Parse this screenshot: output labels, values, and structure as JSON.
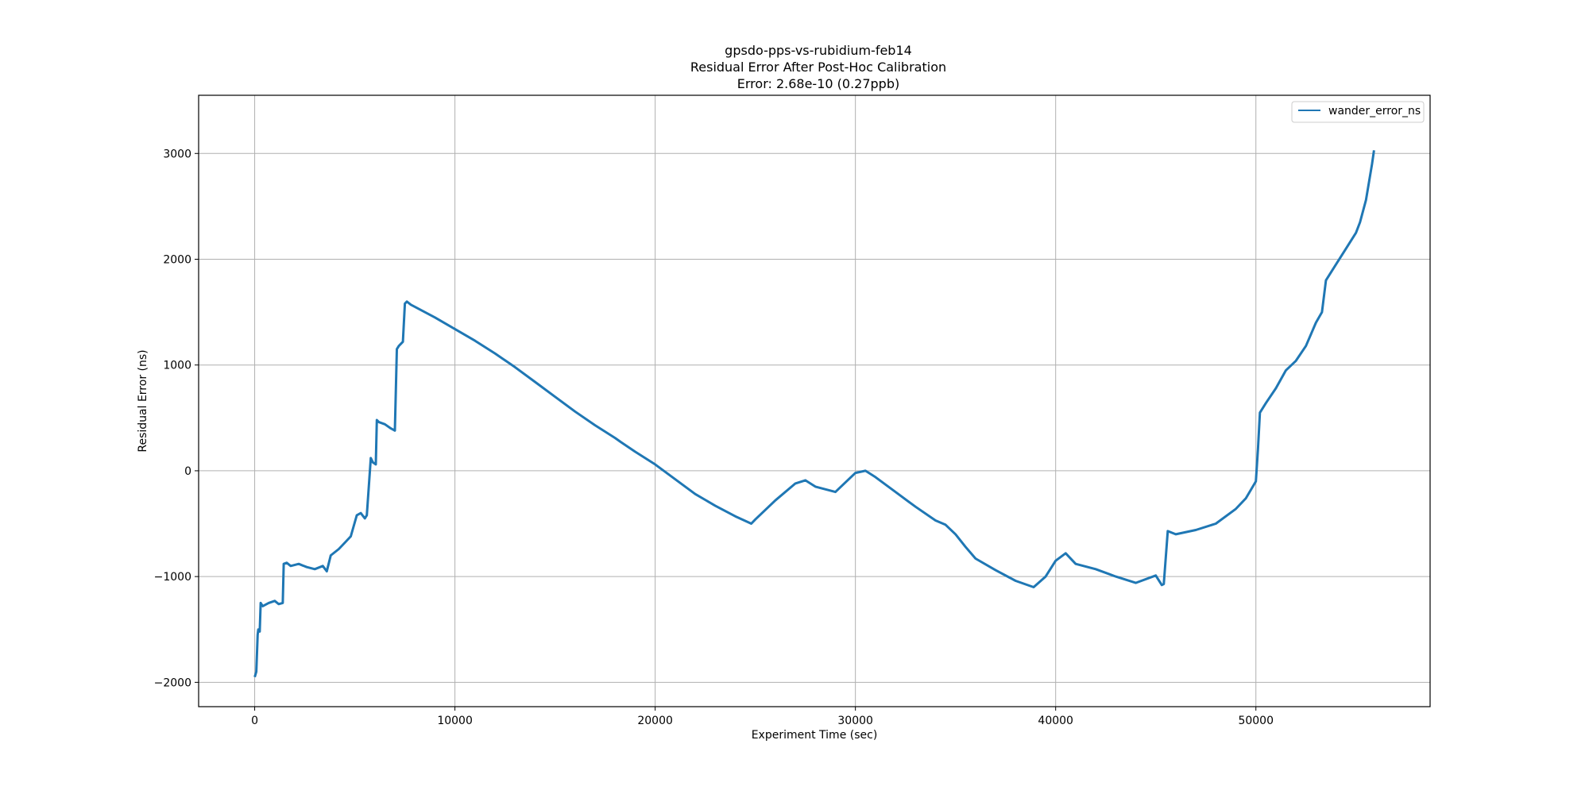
{
  "chart_data": {
    "type": "line",
    "title": [
      "gpsdo-pps-vs-rubidium-feb14",
      "Residual Error After Post-Hoc Calibration",
      "Error: 2.68e-10 (0.27ppb)"
    ],
    "xlabel": "Experiment Time (sec)",
    "ylabel": "Residual Error (ns)",
    "xlim": [
      -2800,
      58700
    ],
    "ylim": [
      -2230,
      3550
    ],
    "xticks": [
      0,
      10000,
      20000,
      30000,
      40000,
      50000
    ],
    "xtick_labels": [
      "0",
      "10000",
      "20000",
      "30000",
      "40000",
      "50000"
    ],
    "yticks": [
      -2000,
      -1000,
      0,
      1000,
      2000,
      3000
    ],
    "ytick_labels": [
      "−2000",
      "−1000",
      "0",
      "1000",
      "2000",
      "3000"
    ],
    "grid": true,
    "legend": "top-right",
    "series": [
      {
        "name": "wander_error_ns",
        "color": "#1f77b4",
        "x": [
          0,
          80,
          150,
          180,
          250,
          300,
          400,
          700,
          1000,
          1200,
          1400,
          1450,
          1600,
          1800,
          2200,
          2600,
          3000,
          3400,
          3600,
          3800,
          4200,
          4500,
          4800,
          5100,
          5300,
          5500,
          5600,
          5700,
          5800,
          5900,
          6050,
          6100,
          6200,
          6500,
          6800,
          7000,
          7100,
          7200,
          7400,
          7500,
          7600,
          7800,
          8000,
          9000,
          10000,
          11000,
          12000,
          13000,
          14000,
          15000,
          16000,
          17000,
          18000,
          18300,
          19000,
          20000,
          21000,
          22000,
          23000,
          24000,
          24800,
          25000,
          26000,
          27000,
          27500,
          28000,
          29000,
          30000,
          30500,
          31000,
          32000,
          33000,
          34000,
          34500,
          35000,
          35500,
          36000,
          37000,
          38000,
          38900,
          39500,
          40000,
          40500,
          41000,
          42000,
          43000,
          44000,
          45000,
          45300,
          45400,
          45600,
          46000,
          47000,
          48000,
          49000,
          49500,
          50000,
          50100,
          50200,
          50500,
          51000,
          51500,
          52000,
          52500,
          53000,
          53300,
          53500,
          54000,
          54500,
          55000,
          55200,
          55500,
          55800,
          55900
        ],
        "y": [
          -1950,
          -1900,
          -1550,
          -1500,
          -1520,
          -1250,
          -1280,
          -1250,
          -1230,
          -1260,
          -1250,
          -880,
          -870,
          -900,
          -880,
          -910,
          -930,
          -900,
          -950,
          -800,
          -740,
          -680,
          -620,
          -420,
          -400,
          -450,
          -420,
          -150,
          120,
          80,
          60,
          480,
          460,
          440,
          400,
          380,
          1150,
          1180,
          1220,
          1580,
          1600,
          1570,
          1550,
          1450,
          1340,
          1230,
          1110,
          980,
          840,
          700,
          560,
          430,
          310,
          270,
          180,
          60,
          -80,
          -220,
          -330,
          -430,
          -500,
          -460,
          -280,
          -120,
          -90,
          -150,
          -200,
          -20,
          0,
          -60,
          -200,
          -340,
          -470,
          -510,
          -600,
          -720,
          -830,
          -940,
          -1040,
          -1100,
          -1000,
          -850,
          -780,
          -880,
          -930,
          -1000,
          -1060,
          -990,
          -1080,
          -1070,
          -570,
          -600,
          -560,
          -500,
          -360,
          -260,
          -100,
          200,
          550,
          640,
          780,
          950,
          1040,
          1180,
          1400,
          1500,
          1800,
          1950,
          2100,
          2250,
          2350,
          2560,
          2900,
          3030
        ]
      }
    ]
  }
}
